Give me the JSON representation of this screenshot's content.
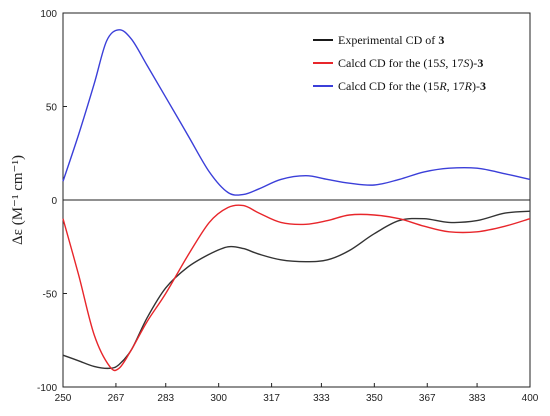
{
  "chart_data": {
    "type": "line",
    "title": "",
    "xlabel": "",
    "ylabel": "Δε (M⁻¹ cm⁻¹)",
    "xlim": [
      250,
      400
    ],
    "ylim": [
      -100,
      100
    ],
    "x_ticks": [
      250,
      267,
      283,
      300,
      317,
      333,
      350,
      367,
      383,
      400
    ],
    "y_ticks": [
      100,
      50,
      0,
      -50,
      -100
    ],
    "grid": false,
    "legend_position": "top-right",
    "series": [
      {
        "name": "Experimental CD of 3",
        "color": "#333333",
        "x": [
          250,
          255,
          260,
          265,
          268,
          272,
          277,
          283,
          290,
          297,
          303,
          308,
          313,
          320,
          328,
          335,
          342,
          350,
          358,
          366,
          374,
          383,
          392,
          400
        ],
        "y": [
          -83,
          -86,
          -89,
          -90,
          -88,
          -80,
          -63,
          -47,
          -36,
          -29,
          -25,
          -26,
          -29,
          -32,
          -33,
          -32,
          -27,
          -18,
          -11,
          -10,
          -12,
          -11,
          -7,
          -6
        ]
      },
      {
        "name": "Calcd CD for the (15S, 17S)-3",
        "color": "#e8262b",
        "x": [
          250,
          255,
          260,
          265,
          268,
          272,
          277,
          283,
          290,
          297,
          303,
          308,
          313,
          320,
          328,
          335,
          342,
          350,
          358,
          366,
          374,
          383,
          392,
          400
        ],
        "y": [
          -10,
          -40,
          -72,
          -89,
          -90,
          -80,
          -65,
          -50,
          -30,
          -12,
          -4,
          -3,
          -7,
          -12,
          -13,
          -11,
          -8,
          -8,
          -10,
          -14,
          -17,
          -17,
          -14,
          -10
        ]
      },
      {
        "name": "Calcd CD for the (15R, 17R)-3",
        "color": "#3b3fd9",
        "x": [
          250,
          255,
          260,
          264,
          268,
          272,
          277,
          283,
          290,
          297,
          303,
          308,
          313,
          320,
          328,
          335,
          342,
          350,
          358,
          366,
          374,
          383,
          392,
          400
        ],
        "y": [
          10,
          35,
          62,
          85,
          91,
          86,
          72,
          55,
          35,
          15,
          4,
          3,
          6,
          11,
          13,
          11,
          9,
          8,
          11,
          15,
          17,
          17,
          14,
          11
        ]
      }
    ]
  },
  "legend": {
    "items": [
      {
        "parts": [
          {
            "t": "Experimental CD of "
          },
          {
            "t": "3",
            "b": true
          }
        ],
        "color": "#1a1a1a"
      },
      {
        "parts": [
          {
            "t": "Calcd CD for the (15"
          },
          {
            "t": "S",
            "i": true
          },
          {
            "t": ", 17"
          },
          {
            "t": "S",
            "i": true
          },
          {
            "t": ")-"
          },
          {
            "t": "3",
            "b": true
          }
        ],
        "color": "#e8262b"
      },
      {
        "parts": [
          {
            "t": "Calcd CD for the (15"
          },
          {
            "t": "R",
            "i": true
          },
          {
            "t": ", 17"
          },
          {
            "t": "R",
            "i": true
          },
          {
            "t": ")-"
          },
          {
            "t": "3",
            "b": true
          }
        ],
        "color": "#3b3fd9"
      }
    ]
  }
}
